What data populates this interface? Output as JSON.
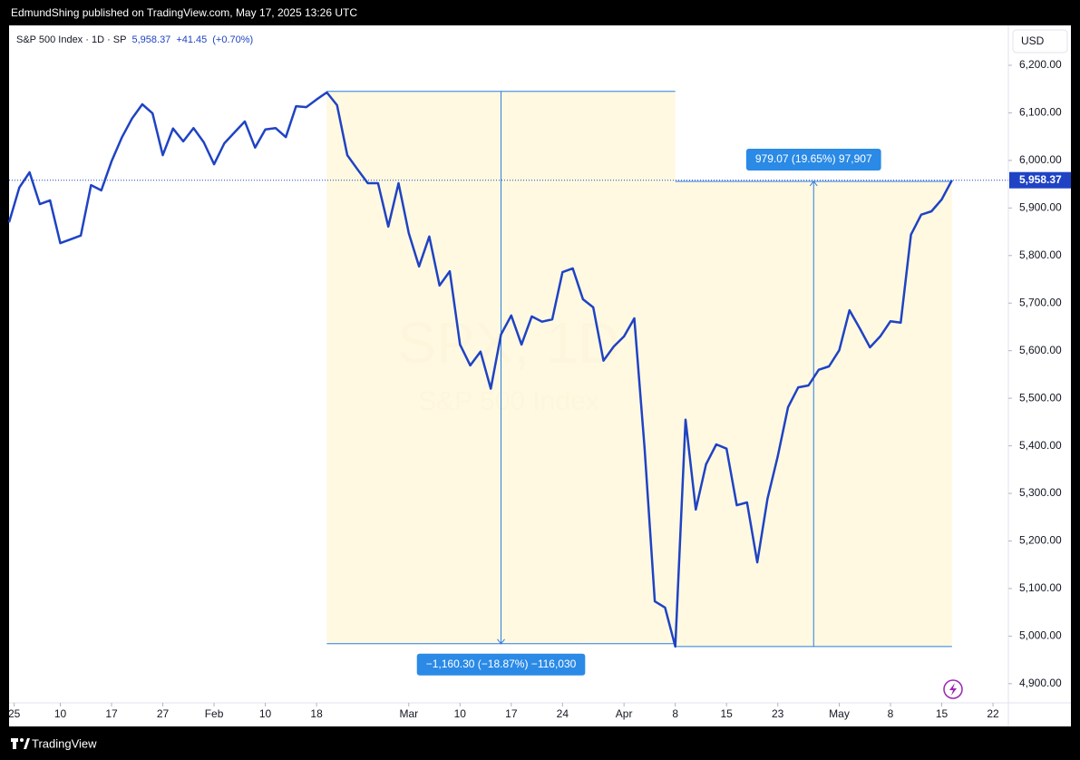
{
  "header": "EdmundShing published on TradingView.com, May 17, 2025 13:26 UTC",
  "footer": "TradingView",
  "chart_data": {
    "type": "line",
    "legend": {
      "symbol": "S&P 500 Index · 1D · SP",
      "price": "5,958.37",
      "change": "+41.45",
      "change_pct": "(+0.70%)"
    },
    "watermark": {
      "title": "SPX, 1D",
      "subtitle": "S&P 500 Index"
    },
    "currency": "USD",
    "color": "#1f43c4",
    "values": [
      5870,
      5943,
      5975,
      5908,
      5916,
      5826,
      5834,
      5842,
      5948,
      5937,
      5998,
      6048,
      6088,
      6118,
      6099,
      6011,
      6067,
      6040,
      6068,
      6038,
      5992,
      6036,
      6059,
      6082,
      6027,
      6065,
      6068,
      6049,
      6114,
      6112,
      6128,
      6143,
      6116,
      6011,
      5981,
      5952,
      5952,
      5861,
      5952,
      5847,
      5777,
      5840,
      5737,
      5767,
      5613,
      5569,
      5598,
      5520,
      5634,
      5674,
      5613,
      5672,
      5661,
      5666,
      5765,
      5773,
      5708,
      5691,
      5579,
      5609,
      5630,
      5668,
      5396,
      5073,
      5060,
      4978,
      5455,
      5266,
      5361,
      5403,
      5394,
      5275,
      5281,
      5155,
      5289,
      5378,
      5481,
      5523,
      5527,
      5560,
      5567,
      5601,
      5685,
      5647,
      5607,
      5630,
      5662,
      5659,
      5844,
      5886,
      5893,
      5918,
      5958.37
    ],
    "xlim": [
      0,
      97.5
    ],
    "xticks": [
      {
        "value": 0.5,
        "label": "25"
      },
      {
        "value": 5,
        "label": "10"
      },
      {
        "value": 10,
        "label": "17"
      },
      {
        "value": 15,
        "label": "27"
      },
      {
        "value": 20,
        "label": "Feb"
      },
      {
        "value": 25,
        "label": "10"
      },
      {
        "value": 30,
        "label": "18"
      },
      {
        "value": 39,
        "label": "Mar"
      },
      {
        "value": 44,
        "label": "10"
      },
      {
        "value": 49,
        "label": "17"
      },
      {
        "value": 54,
        "label": "24"
      },
      {
        "value": 60,
        "label": "Apr"
      },
      {
        "value": 65,
        "label": "8"
      },
      {
        "value": 70,
        "label": "15"
      },
      {
        "value": 75,
        "label": "23"
      },
      {
        "value": 81,
        "label": "May"
      },
      {
        "value": 86,
        "label": "8"
      },
      {
        "value": 91,
        "label": "15"
      },
      {
        "value": 96,
        "label": "22"
      }
    ],
    "ylim": [
      4812,
      6280
    ],
    "yticks": [
      {
        "value": 4900,
        "label": "4,900.00"
      },
      {
        "value": 5000,
        "label": "5,000.00"
      },
      {
        "value": 5100,
        "label": "5,100.00"
      },
      {
        "value": 5200,
        "label": "5,200.00"
      },
      {
        "value": 5300,
        "label": "5,300.00"
      },
      {
        "value": 5400,
        "label": "5,400.00"
      },
      {
        "value": 5500,
        "label": "5,500.00"
      },
      {
        "value": 5600,
        "label": "5,600.00"
      },
      {
        "value": 5700,
        "label": "5,700.00"
      },
      {
        "value": 5800,
        "label": "5,800.00"
      },
      {
        "value": 5900,
        "label": "5,900.00"
      },
      {
        "value": 6000,
        "label": "6,000.00"
      },
      {
        "value": 6100,
        "label": "6,100.00"
      },
      {
        "value": 6200,
        "label": "6,200.00"
      }
    ],
    "measurements": [
      {
        "label": "−1,160.30 (−18.87%) −116,030",
        "x": [
          31,
          65
        ],
        "y": [
          6145,
          4984
        ],
        "direction": "down"
      },
      {
        "label": "979.07 (19.65%) 97,907",
        "x": [
          65,
          92
        ],
        "y": [
          4978,
          5956
        ],
        "direction": "up"
      }
    ]
  }
}
